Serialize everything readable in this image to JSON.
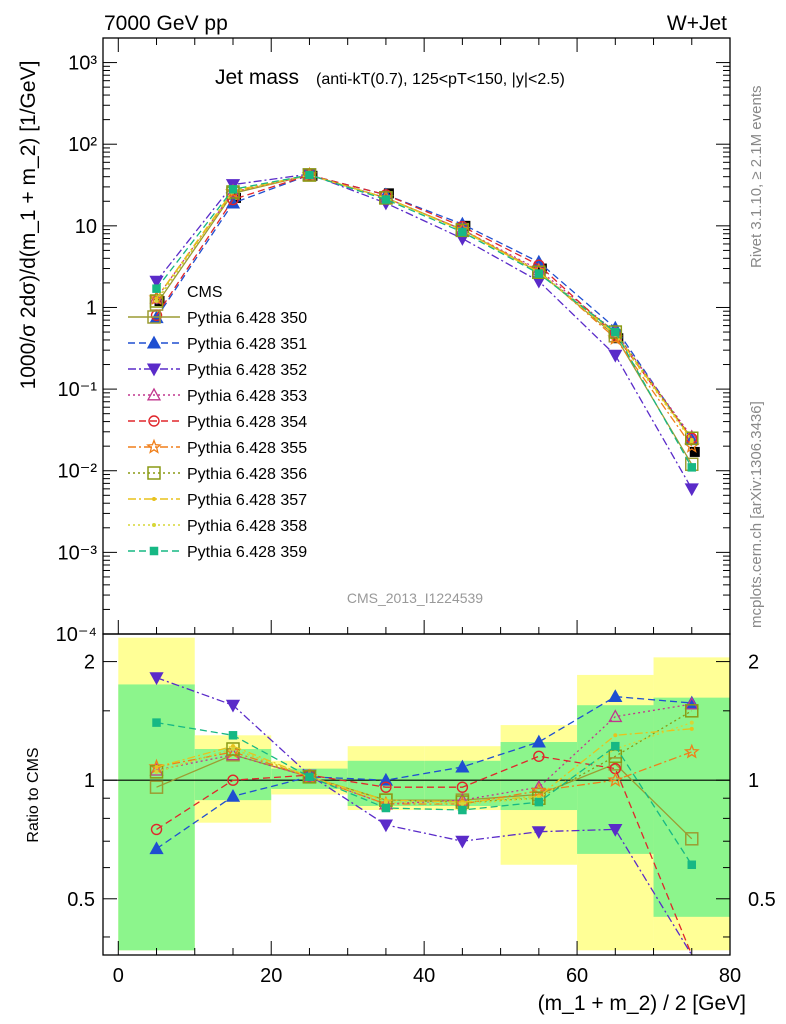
{
  "header": {
    "left": "7000 GeV pp",
    "right": "W+Jet",
    "title_main": "Jet mass",
    "title_detail": "(anti-kT(0.7), 125<pT<150, |y|<2.5)",
    "side_top": "Rivet 3.1.10, ≥ 2.1M events",
    "side_bottom": "mcplots.cern.ch [arXiv:1306.3436]",
    "watermark": "CMS_2013_I1224539"
  },
  "chart_data": [
    {
      "type": "line",
      "panel": "main",
      "ylabel": "1000/σ 2dσ)/d(m_1 + m_2) [1/GeV]",
      "yscale": "log",
      "ylim": [
        0.0001,
        2000
      ],
      "xlim": [
        -2,
        80
      ],
      "x": [
        5,
        15,
        25,
        35,
        45,
        55,
        65,
        75
      ],
      "ytick_labels": [
        "10⁻⁴",
        "10⁻³",
        "10⁻²",
        "10⁻¹",
        "1",
        "10",
        "10²",
        "10³"
      ],
      "legend_position": "left-middle",
      "series": [
        {
          "name": "CMS",
          "color": "#000000",
          "style": "data",
          "values": [
            1.2,
            22,
            41,
            25,
            10,
            3.0,
            0.42,
            0.017
          ]
        },
        {
          "name": "Pythia 6.428 350",
          "color": "#9c9c32",
          "style": "solid",
          "marker": "open-square",
          "values": [
            1.1,
            25,
            42,
            22,
            9,
            2.7,
            0.45,
            0.012
          ]
        },
        {
          "name": "Pythia 6.428 351",
          "color": "#1f4fd1",
          "style": "dashed",
          "marker": "filled-triangle-up",
          "values": [
            0.75,
            19,
            42,
            24,
            10.5,
            3.6,
            0.56,
            0.024
          ]
        },
        {
          "name": "Pythia 6.428 352",
          "color": "#5a2bc9",
          "style": "dashdot",
          "marker": "filled-triangle-down",
          "values": [
            2.1,
            32,
            43,
            19,
            7,
            2.1,
            0.26,
            0.006
          ]
        },
        {
          "name": "Pythia 6.428 353",
          "color": "#c1368e",
          "style": "dotted",
          "marker": "open-triangle-up",
          "values": [
            1.3,
            26,
            42,
            22,
            9,
            2.9,
            0.5,
            0.026
          ]
        },
        {
          "name": "Pythia 6.428 354",
          "color": "#e0262b",
          "style": "dashed",
          "marker": "open-circle",
          "values": [
            0.8,
            21,
            42,
            24,
            9.8,
            3.3,
            0.46,
            0.025
          ]
        },
        {
          "name": "Pythia 6.428 355",
          "color": "#f07f1a",
          "style": "dashdot",
          "marker": "open-star",
          "values": [
            1.3,
            26,
            42,
            22,
            9,
            2.8,
            0.42,
            0.02
          ]
        },
        {
          "name": "Pythia 6.428 356",
          "color": "#8a9a14",
          "style": "dotted",
          "marker": "open-square",
          "values": [
            1.2,
            26,
            42,
            22,
            8.8,
            2.7,
            0.5,
            0.025
          ]
        },
        {
          "name": "Pythia 6.428 357",
          "color": "#e8c21c",
          "style": "dashdot",
          "marker": "small-dot",
          "values": [
            1.3,
            27,
            42,
            22,
            8.8,
            2.7,
            0.48,
            0.024
          ]
        },
        {
          "name": "Pythia 6.428 358",
          "color": "#d6d636",
          "style": "dotted",
          "marker": "small-dot",
          "values": [
            1.2,
            26,
            42,
            22,
            8.8,
            2.7,
            0.46,
            0.023
          ]
        },
        {
          "name": "Pythia 6.428 359",
          "color": "#17b884",
          "style": "dashed",
          "marker": "filled-square",
          "values": [
            1.7,
            28,
            42,
            21,
            8.4,
            2.6,
            0.5,
            0.011
          ]
        }
      ]
    },
    {
      "type": "line",
      "panel": "ratio",
      "xlabel": "(m_1 + m_2) / 2 [GeV]",
      "ylabel": "Ratio to CMS",
      "yscale": "log",
      "ylim": [
        0.36,
        2.35
      ],
      "xlim": [
        -2,
        80
      ],
      "x": [
        5,
        15,
        25,
        35,
        45,
        55,
        65,
        75
      ],
      "ytick_labels": [
        "0.5",
        "1",
        "2"
      ],
      "xtick_labels": [
        "0",
        "20",
        "40",
        "60",
        "80"
      ],
      "uncertainty_bands": {
        "bin_edges": [
          0,
          10,
          20,
          30,
          40,
          50,
          60,
          70,
          80
        ],
        "stat_color": "#8cf58c",
        "total_color": "#ffff96",
        "stat": [
          [
            0.37,
            1.75
          ],
          [
            0.89,
            1.2
          ],
          [
            0.95,
            1.07
          ],
          [
            0.86,
            1.12
          ],
          [
            0.86,
            1.12
          ],
          [
            0.84,
            1.25
          ],
          [
            0.65,
            1.55
          ],
          [
            0.45,
            1.62
          ]
        ],
        "total": [
          [
            0.37,
            2.3
          ],
          [
            0.78,
            1.3
          ],
          [
            0.92,
            1.12
          ],
          [
            0.84,
            1.22
          ],
          [
            0.84,
            1.22
          ],
          [
            0.61,
            1.38
          ],
          [
            0.37,
            1.85
          ],
          [
            0.37,
            2.05
          ]
        ]
      },
      "series": [
        {
          "name": "Pythia 6.428 350",
          "values": [
            0.96,
            1.16,
            1.02,
            0.89,
            0.89,
            0.92,
            1.1,
            0.71
          ]
        },
        {
          "name": "Pythia 6.428 351",
          "values": [
            0.67,
            0.91,
            1.02,
            1.0,
            1.08,
            1.25,
            1.63,
            1.57
          ]
        },
        {
          "name": "Pythia 6.428 352",
          "values": [
            1.82,
            1.55,
            1.03,
            0.77,
            0.7,
            0.74,
            0.75,
            0.33
          ]
        },
        {
          "name": "Pythia 6.428 353",
          "values": [
            1.06,
            1.16,
            1.02,
            0.87,
            0.89,
            0.96,
            1.45,
            1.56
          ]
        },
        {
          "name": "Pythia 6.428 354",
          "values": [
            0.75,
            1.0,
            1.03,
            0.96,
            0.96,
            1.15,
            1.07,
            null
          ]
        },
        {
          "name": "Pythia 6.428 355",
          "values": [
            1.08,
            1.18,
            1.02,
            0.87,
            0.87,
            0.94,
            1.0,
            1.18
          ]
        },
        {
          "name": "Pythia 6.428 356",
          "values": [
            1.05,
            1.2,
            1.02,
            0.89,
            0.88,
            0.9,
            1.15,
            1.5
          ]
        },
        {
          "name": "Pythia 6.428 357",
          "values": [
            1.08,
            1.22,
            1.02,
            0.89,
            0.88,
            0.91,
            1.3,
            1.35
          ]
        },
        {
          "name": "Pythia 6.428 358",
          "values": [
            1.05,
            1.2,
            1.02,
            0.88,
            0.87,
            0.9,
            1.2,
            1.4
          ]
        },
        {
          "name": "Pythia 6.428 359",
          "values": [
            1.4,
            1.3,
            1.02,
            0.85,
            0.84,
            0.88,
            1.22,
            0.61
          ]
        }
      ]
    }
  ]
}
